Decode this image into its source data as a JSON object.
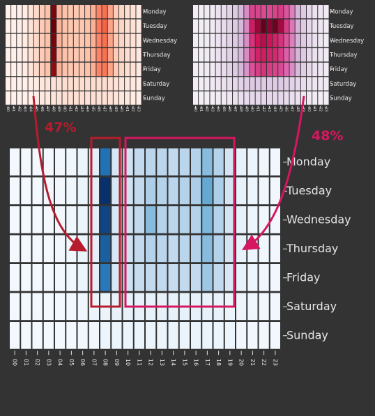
{
  "colors": {
    "background": "#333333",
    "red_accent": "#b71c2c",
    "pink_accent": "#d5175f"
  },
  "annotations": {
    "left_percent": "47%",
    "right_percent": "48%"
  },
  "chart_data": [
    {
      "type": "heatmap",
      "colormap": "Reds",
      "x": [
        "00",
        "01",
        "02",
        "03",
        "04",
        "05",
        "06",
        "07",
        "08",
        "09",
        "10",
        "11",
        "12",
        "13",
        "14",
        "15",
        "16",
        "17",
        "18",
        "19",
        "20",
        "21",
        "22",
        "23"
      ],
      "y": [
        "Monday",
        "Tuesday",
        "Wednesday",
        "Thursday",
        "Friday",
        "Saturday",
        "Sunday"
      ],
      "values": [
        [
          0.02,
          0.02,
          0.03,
          0.04,
          0.08,
          0.12,
          0.18,
          0.22,
          0.95,
          0.28,
          0.22,
          0.2,
          0.2,
          0.2,
          0.22,
          0.28,
          0.42,
          0.48,
          0.32,
          0.18,
          0.14,
          0.1,
          0.08,
          0.05
        ],
        [
          0.02,
          0.02,
          0.03,
          0.04,
          0.08,
          0.12,
          0.18,
          0.22,
          1.0,
          0.28,
          0.22,
          0.2,
          0.2,
          0.2,
          0.22,
          0.28,
          0.45,
          0.52,
          0.32,
          0.18,
          0.14,
          0.1,
          0.08,
          0.05
        ],
        [
          0.02,
          0.02,
          0.03,
          0.04,
          0.08,
          0.12,
          0.18,
          0.22,
          0.96,
          0.28,
          0.22,
          0.2,
          0.2,
          0.2,
          0.22,
          0.28,
          0.42,
          0.48,
          0.32,
          0.18,
          0.14,
          0.1,
          0.08,
          0.05
        ],
        [
          0.02,
          0.02,
          0.03,
          0.04,
          0.08,
          0.12,
          0.18,
          0.22,
          0.95,
          0.28,
          0.22,
          0.2,
          0.2,
          0.2,
          0.22,
          0.28,
          0.42,
          0.48,
          0.32,
          0.18,
          0.14,
          0.1,
          0.08,
          0.05
        ],
        [
          0.02,
          0.02,
          0.03,
          0.04,
          0.08,
          0.12,
          0.18,
          0.22,
          0.9,
          0.28,
          0.22,
          0.2,
          0.2,
          0.2,
          0.22,
          0.28,
          0.42,
          0.46,
          0.32,
          0.18,
          0.14,
          0.1,
          0.08,
          0.05
        ],
        [
          0.02,
          0.02,
          0.02,
          0.02,
          0.03,
          0.04,
          0.06,
          0.07,
          0.08,
          0.09,
          0.1,
          0.1,
          0.1,
          0.1,
          0.1,
          0.1,
          0.1,
          0.1,
          0.09,
          0.08,
          0.07,
          0.06,
          0.05,
          0.04
        ],
        [
          0.02,
          0.02,
          0.02,
          0.02,
          0.02,
          0.03,
          0.05,
          0.06,
          0.07,
          0.08,
          0.09,
          0.09,
          0.09,
          0.09,
          0.09,
          0.09,
          0.09,
          0.09,
          0.08,
          0.07,
          0.06,
          0.05,
          0.04,
          0.03
        ]
      ]
    },
    {
      "type": "heatmap",
      "colormap": "PuRd",
      "x": [
        "00",
        "01",
        "02",
        "03",
        "04",
        "05",
        "06",
        "07",
        "08",
        "09",
        "10",
        "11",
        "12",
        "13",
        "14",
        "15",
        "16",
        "17",
        "18",
        "19",
        "20",
        "21",
        "22",
        "23"
      ],
      "y": [
        "Monday",
        "Tuesday",
        "Wednesday",
        "Thursday",
        "Friday",
        "Saturday",
        "Sunday"
      ],
      "values": [
        [
          0.03,
          0.03,
          0.04,
          0.05,
          0.08,
          0.1,
          0.14,
          0.18,
          0.25,
          0.38,
          0.6,
          0.6,
          0.58,
          0.58,
          0.6,
          0.62,
          0.55,
          0.42,
          0.26,
          0.18,
          0.12,
          0.08,
          0.06,
          0.04
        ],
        [
          0.03,
          0.03,
          0.04,
          0.05,
          0.08,
          0.1,
          0.14,
          0.18,
          0.25,
          0.4,
          0.72,
          0.88,
          1.0,
          0.92,
          0.98,
          0.85,
          0.62,
          0.45,
          0.27,
          0.18,
          0.12,
          0.08,
          0.06,
          0.04
        ],
        [
          0.03,
          0.03,
          0.04,
          0.05,
          0.08,
          0.1,
          0.14,
          0.18,
          0.25,
          0.38,
          0.65,
          0.75,
          0.8,
          0.75,
          0.7,
          0.65,
          0.55,
          0.42,
          0.26,
          0.18,
          0.12,
          0.08,
          0.06,
          0.04
        ],
        [
          0.03,
          0.03,
          0.04,
          0.05,
          0.08,
          0.1,
          0.14,
          0.18,
          0.25,
          0.38,
          0.62,
          0.7,
          0.72,
          0.7,
          0.68,
          0.62,
          0.52,
          0.4,
          0.26,
          0.18,
          0.12,
          0.08,
          0.06,
          0.04
        ],
        [
          0.03,
          0.03,
          0.04,
          0.05,
          0.08,
          0.1,
          0.14,
          0.18,
          0.25,
          0.36,
          0.56,
          0.62,
          0.65,
          0.62,
          0.6,
          0.58,
          0.5,
          0.38,
          0.24,
          0.16,
          0.12,
          0.08,
          0.06,
          0.04
        ],
        [
          0.03,
          0.03,
          0.04,
          0.05,
          0.06,
          0.08,
          0.1,
          0.12,
          0.14,
          0.16,
          0.18,
          0.18,
          0.18,
          0.18,
          0.18,
          0.18,
          0.16,
          0.14,
          0.12,
          0.1,
          0.08,
          0.06,
          0.05,
          0.04
        ],
        [
          0.02,
          0.02,
          0.03,
          0.03,
          0.04,
          0.05,
          0.06,
          0.08,
          0.09,
          0.1,
          0.12,
          0.12,
          0.12,
          0.12,
          0.12,
          0.12,
          0.1,
          0.09,
          0.08,
          0.06,
          0.05,
          0.04,
          0.03,
          0.03
        ]
      ]
    },
    {
      "type": "heatmap",
      "colormap": "Blues",
      "x": [
        "00",
        "01",
        "02",
        "03",
        "04",
        "05",
        "06",
        "07",
        "08",
        "09",
        "10",
        "11",
        "12",
        "13",
        "14",
        "15",
        "16",
        "17",
        "18",
        "19",
        "20",
        "21",
        "22",
        "23"
      ],
      "y": [
        "Monday",
        "Tuesday",
        "Wednesday",
        "Thursday",
        "Friday",
        "Saturday",
        "Sunday"
      ],
      "values": [
        [
          0.02,
          0.02,
          0.02,
          0.02,
          0.03,
          0.04,
          0.06,
          0.1,
          0.75,
          0.16,
          0.2,
          0.26,
          0.28,
          0.28,
          0.26,
          0.28,
          0.3,
          0.42,
          0.3,
          0.18,
          0.08,
          0.05,
          0.04,
          0.03
        ],
        [
          0.02,
          0.02,
          0.02,
          0.02,
          0.03,
          0.04,
          0.06,
          0.1,
          1.0,
          0.16,
          0.2,
          0.26,
          0.32,
          0.3,
          0.28,
          0.3,
          0.32,
          0.52,
          0.32,
          0.18,
          0.08,
          0.05,
          0.04,
          0.03
        ],
        [
          0.02,
          0.02,
          0.02,
          0.02,
          0.03,
          0.04,
          0.06,
          0.1,
          0.92,
          0.16,
          0.2,
          0.26,
          0.42,
          0.3,
          0.28,
          0.3,
          0.3,
          0.45,
          0.3,
          0.18,
          0.08,
          0.05,
          0.04,
          0.03
        ],
        [
          0.02,
          0.02,
          0.02,
          0.02,
          0.03,
          0.04,
          0.06,
          0.1,
          0.82,
          0.16,
          0.2,
          0.26,
          0.3,
          0.28,
          0.26,
          0.28,
          0.3,
          0.42,
          0.3,
          0.18,
          0.08,
          0.05,
          0.04,
          0.03
        ],
        [
          0.02,
          0.02,
          0.02,
          0.02,
          0.03,
          0.04,
          0.06,
          0.1,
          0.72,
          0.16,
          0.2,
          0.24,
          0.26,
          0.26,
          0.24,
          0.26,
          0.26,
          0.36,
          0.26,
          0.16,
          0.08,
          0.05,
          0.04,
          0.03
        ],
        [
          0.02,
          0.02,
          0.02,
          0.02,
          0.02,
          0.03,
          0.04,
          0.05,
          0.06,
          0.07,
          0.08,
          0.08,
          0.08,
          0.08,
          0.08,
          0.08,
          0.08,
          0.08,
          0.07,
          0.06,
          0.05,
          0.04,
          0.03,
          0.03
        ],
        [
          0.02,
          0.02,
          0.02,
          0.02,
          0.02,
          0.02,
          0.03,
          0.04,
          0.05,
          0.06,
          0.06,
          0.06,
          0.06,
          0.06,
          0.06,
          0.06,
          0.06,
          0.06,
          0.05,
          0.05,
          0.04,
          0.03,
          0.03,
          0.02
        ]
      ]
    }
  ]
}
